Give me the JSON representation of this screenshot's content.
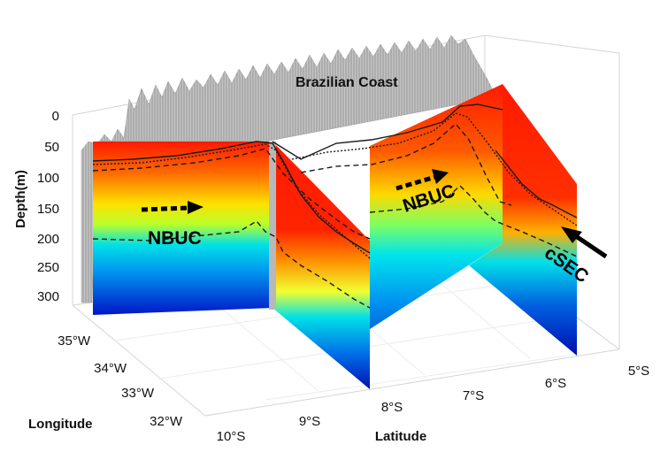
{
  "title": "Brazilian Coast",
  "depth_axis": {
    "label": "Depth(m)",
    "ticks": [
      "0",
      "50",
      "100",
      "150",
      "200",
      "250",
      "300"
    ]
  },
  "latitude_axis": {
    "label": "Latitude",
    "ticks": [
      "10°S",
      "9°S",
      "8°S",
      "7°S",
      "6°S",
      "5°S"
    ]
  },
  "longitude_axis": {
    "label": "Longitude",
    "ticks": [
      "35°W",
      "34°W",
      "33°W",
      "32°W"
    ]
  },
  "annotations": {
    "nbuc_left": "NBUC",
    "nbuc_right": "NBUC",
    "csec": "cSEC"
  },
  "colors": {
    "surface": "#ff2200",
    "mid": "#ffe000",
    "cyan": "#00d8f0",
    "deep": "#0010b0",
    "coast": "#a8a8a8"
  }
}
